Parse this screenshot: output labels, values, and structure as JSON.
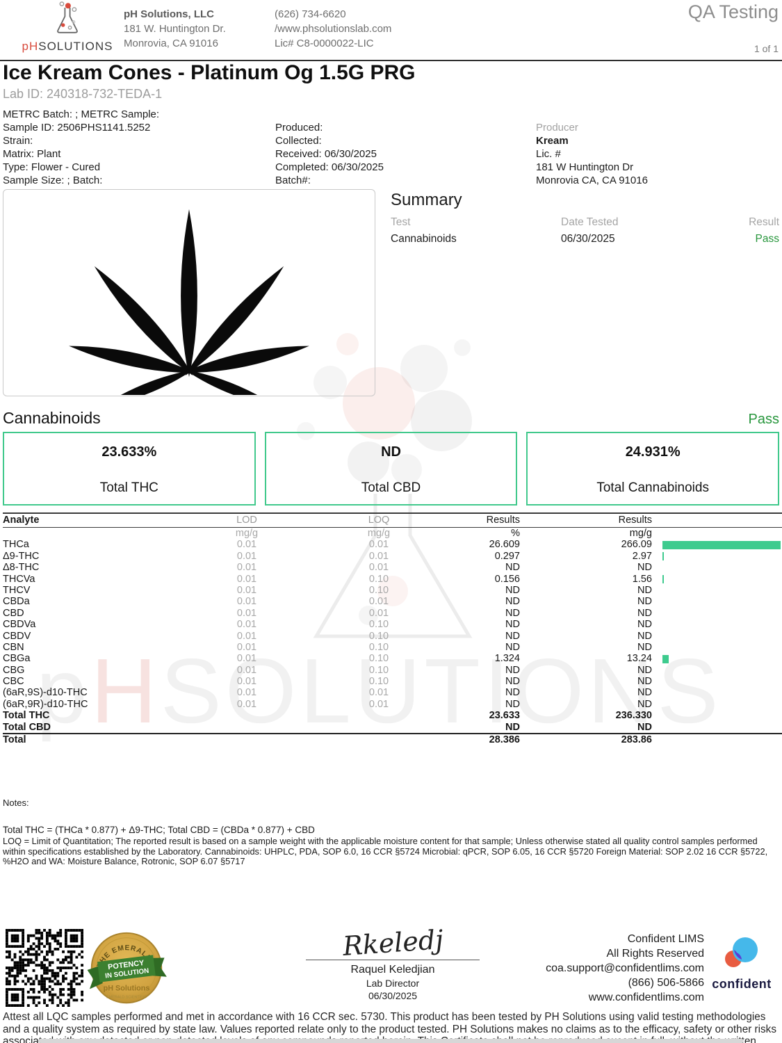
{
  "header": {
    "logo_prefix": "pH",
    "logo_rest": "SOLUTIONS",
    "company": {
      "name": "pH Solutions, LLC",
      "address1": "181 W. Huntington Dr.",
      "address2": "Monrovia, CA 91016"
    },
    "contact": {
      "phone": "(626) 734-6620",
      "website": "/www.phsolutionslab.com",
      "license": "Lic# C8-0000022-LIC"
    },
    "qa_label": "QA Testing",
    "page_number": "1 of 1"
  },
  "sample": {
    "title": "Ice Kream Cones - Platinum Og 1.5G PRG",
    "lab_id": "Lab ID: 240318-732-TEDA-1",
    "metrc_line": "METRC Batch: ; METRC Sample:",
    "col1": [
      "Sample ID: 2506PHS1141.5252",
      "Strain:",
      "Matrix: Plant",
      "Type: Flower - Cured",
      "Sample Size: ; Batch:"
    ],
    "col2": [
      "Produced:",
      "Collected:",
      "Received: 06/30/2025",
      "Completed: 06/30/2025",
      "Batch#:"
    ],
    "col3": [
      "Producer",
      "Kream",
      "Lic. #",
      "181 W Huntington Dr",
      "Monrovia CA, CA 91016"
    ]
  },
  "summary": {
    "heading": "Summary",
    "columns": [
      "Test",
      "Date Tested",
      "Result"
    ],
    "rows": [
      {
        "test": "Cannabinoids",
        "date": "06/30/2025",
        "result": "Pass"
      }
    ]
  },
  "cannabinoids": {
    "heading": "Cannabinoids",
    "status": "Pass",
    "totals": [
      {
        "value": "23.633%",
        "label": "Total THC"
      },
      {
        "value": "ND",
        "label": "Total CBD"
      },
      {
        "value": "24.931%",
        "label": "Total Cannabinoids"
      }
    ]
  },
  "analyte_table": {
    "columns": [
      "Analyte",
      "LOD",
      "LOQ",
      "Results",
      "Results"
    ],
    "units": [
      "",
      "mg/g",
      "mg/g",
      "%",
      "mg/g"
    ],
    "bar_max": 266.09,
    "bar_color": "#3ecb8e",
    "rows": [
      {
        "name": "THCa",
        "lod": "0.01",
        "loq": "0.01",
        "pct": "26.609",
        "mgg": "266.09",
        "bar": 266.09
      },
      {
        "name": "Δ9-THC",
        "lod": "0.01",
        "loq": "0.01",
        "pct": "0.297",
        "mgg": "2.97",
        "bar": 2.97
      },
      {
        "name": "Δ8-THC",
        "lod": "0.01",
        "loq": "0.01",
        "pct": "ND",
        "mgg": "ND",
        "bar": 0
      },
      {
        "name": "THCVa",
        "lod": "0.01",
        "loq": "0.10",
        "pct": "0.156",
        "mgg": "1.56",
        "bar": 1.56
      },
      {
        "name": "THCV",
        "lod": "0.01",
        "loq": "0.10",
        "pct": "ND",
        "mgg": "ND",
        "bar": 0
      },
      {
        "name": "CBDa",
        "lod": "0.01",
        "loq": "0.01",
        "pct": "ND",
        "mgg": "ND",
        "bar": 0
      },
      {
        "name": "CBD",
        "lod": "0.01",
        "loq": "0.01",
        "pct": "ND",
        "mgg": "ND",
        "bar": 0
      },
      {
        "name": "CBDVa",
        "lod": "0.01",
        "loq": "0.10",
        "pct": "ND",
        "mgg": "ND",
        "bar": 0
      },
      {
        "name": "CBDV",
        "lod": "0.01",
        "loq": "0.10",
        "pct": "ND",
        "mgg": "ND",
        "bar": 0
      },
      {
        "name": "CBN",
        "lod": "0.01",
        "loq": "0.10",
        "pct": "ND",
        "mgg": "ND",
        "bar": 0
      },
      {
        "name": "CBGa",
        "lod": "0.01",
        "loq": "0.10",
        "pct": "1.324",
        "mgg": "13.24",
        "bar": 13.24
      },
      {
        "name": "CBG",
        "lod": "0.01",
        "loq": "0.10",
        "pct": "ND",
        "mgg": "ND",
        "bar": 0
      },
      {
        "name": "CBC",
        "lod": "0.01",
        "loq": "0.10",
        "pct": "ND",
        "mgg": "ND",
        "bar": 0
      },
      {
        "name": "(6aR,9S)-d10-THC",
        "lod": "0.01",
        "loq": "0.01",
        "pct": "ND",
        "mgg": "ND",
        "bar": 0
      },
      {
        "name": "(6aR,9R)-d10-THC",
        "lod": "0.01",
        "loq": "0.01",
        "pct": "ND",
        "mgg": "ND",
        "bar": 0
      }
    ],
    "subtotal_rows": [
      {
        "name": "Total THC",
        "pct": "23.633",
        "mgg": "236.330"
      },
      {
        "name": "Total CBD",
        "pct": "ND",
        "mgg": "ND"
      }
    ],
    "total_row": {
      "name": "Total",
      "pct": "28.386",
      "mgg": "283.86"
    }
  },
  "notes": {
    "label": "Notes:",
    "formula": "Total THC = (THCa * 0.877) + Δ9-THC; Total CBD = (CBDa * 0.877) + CBD",
    "body": "LOQ = Limit of Quantitation; The reported result is based on a sample weight with the applicable moisture content for that sample; Unless otherwise stated all quality control samples performed within specifications established by the Laboratory. Cannabinoids: UHPLC,  PDA, SOP 6.0, 16 CCR §5724 Microbial: qPCR, SOP 6.05, 16 CCR §5720  Foreign Material: SOP 2.02 16 CCR §5722, %H2O and WA: Moisture  Balance,  Rotronic, SOP 6.07 §5717"
  },
  "footer": {
    "badge": {
      "arc": "THE EMERALD TEST",
      "line1": "POTENCY",
      "line2": "IN SOLUTION",
      "brand": "pH Solutions"
    },
    "signature": {
      "script": "Rkeledj",
      "name": "Raquel Keledjian",
      "title": "Lab Director",
      "date": "06/30/2025"
    },
    "lims": [
      "Confident LIMS",
      "All Rights Reserved",
      "coa.support@confidentlims.com",
      "(866) 506-5866",
      "www.confidentlims.com"
    ],
    "confident_word": "confident"
  },
  "watermark": {
    "p": "p",
    "h": "H",
    "rest": "SOLUTIONS"
  },
  "disclaimer": "Attest all LQC samples performed and met in accordance with 16 CCR sec. 5730. This product has been tested by PH Solutions using valid testing methodologies and a quality system as required by state law. Values reported relate only to the product tested. PH Solutions makes no claims as to the efficacy, safety or other risks associated with any detected or non-detected levels of any compounds reported herein. This Certificate shall not be reproduced except in full, without the written approval of PH Solutions. Certified by Lab Director  Dr. Raquel Keledjian"
}
